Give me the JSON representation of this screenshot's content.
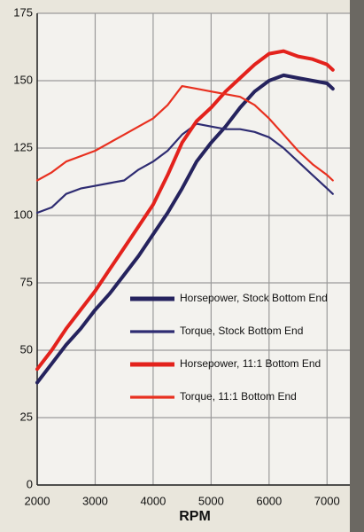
{
  "chart_data": {
    "type": "line",
    "x": [
      2000,
      2250,
      2500,
      2750,
      3000,
      3250,
      3500,
      3750,
      4000,
      4250,
      4500,
      4750,
      5000,
      5250,
      5500,
      5750,
      6000,
      6250,
      6500,
      6750,
      7000,
      7100
    ],
    "series": [
      {
        "name": "Horsepower, Stock Bottom End",
        "color": "#25235e",
        "linewidth": 4,
        "values": [
          38,
          45,
          52,
          58,
          65,
          71,
          78,
          85,
          93,
          101,
          110,
          120,
          127,
          133,
          140,
          146,
          150,
          152,
          151,
          150,
          149,
          147
        ]
      },
      {
        "name": "Torque, Stock Bottom End",
        "color": "#2e2c72",
        "linewidth": 2.2,
        "values": [
          101,
          103,
          108,
          110,
          111,
          112,
          113,
          117,
          120,
          124,
          130,
          134,
          133,
          132,
          132,
          131,
          129,
          125,
          120,
          115,
          110,
          108
        ]
      },
      {
        "name": "Horsepower, 11:1 Bottom End",
        "color": "#e3221c",
        "linewidth": 4,
        "values": [
          43,
          50,
          58,
          65,
          72,
          80,
          88,
          96,
          104,
          115,
          127,
          135,
          140,
          146,
          151,
          156,
          160,
          161,
          159,
          158,
          156,
          154
        ]
      },
      {
        "name": "Torque, 11:1 Bottom End",
        "color": "#e8301f",
        "linewidth": 2.2,
        "values": [
          113,
          116,
          120,
          122,
          124,
          127,
          130,
          133,
          136,
          141,
          148,
          147,
          146,
          145,
          144,
          141,
          136,
          130,
          124,
          119,
          115,
          113
        ]
      }
    ],
    "x_label": "RPM",
    "xlim": [
      2000,
      7500
    ],
    "xticks": [
      2000,
      3000,
      4000,
      5000,
      6000,
      7000
    ],
    "ylim": [
      0,
      175
    ],
    "yticks": [
      0,
      25,
      50,
      75,
      100,
      125,
      150,
      175
    ],
    "grid": true,
    "legend": "lower right"
  }
}
